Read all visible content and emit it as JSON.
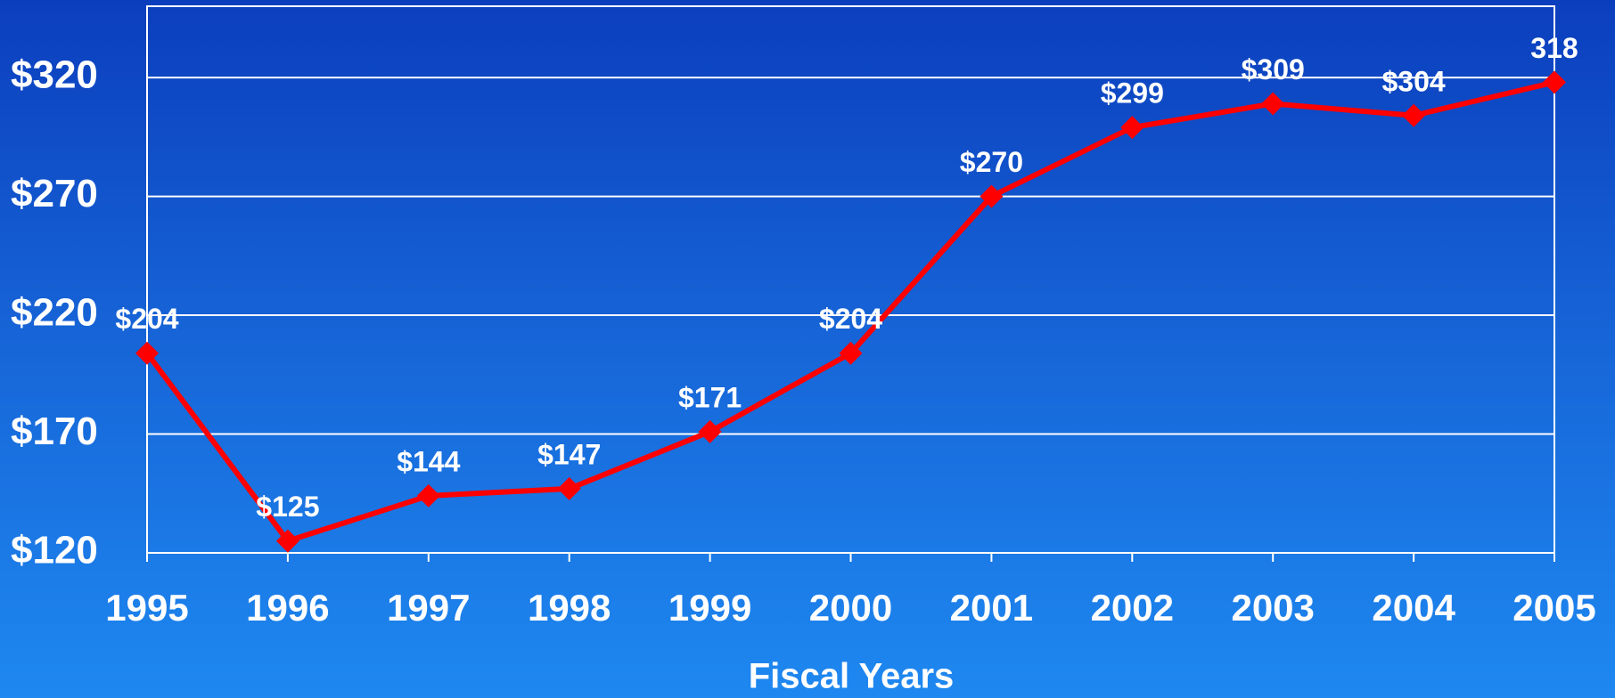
{
  "chart_data": {
    "type": "line",
    "x_label": "Fiscal Years",
    "x": [
      1995,
      1996,
      1997,
      1998,
      1999,
      2000,
      2001,
      2002,
      2003,
      2004,
      2005
    ],
    "values": [
      204,
      125,
      144,
      147,
      171,
      204,
      270,
      299,
      309,
      304,
      318
    ],
    "value_labels": [
      "$204",
      "$125",
      "$144",
      "$147",
      "$171",
      "$204",
      "$270",
      "$299",
      "$309",
      "$304",
      "318"
    ],
    "color": "#ff0000",
    "xlim": [
      1995,
      2005
    ],
    "xticks": [
      1995,
      1996,
      1997,
      1998,
      1999,
      2000,
      2001,
      2002,
      2003,
      2004,
      2005
    ],
    "ylim": [
      120,
      350
    ],
    "yticks": [
      {
        "value": 120,
        "label": "$120"
      },
      {
        "value": 170,
        "label": "$170"
      },
      {
        "value": 220,
        "label": "$220"
      },
      {
        "value": 270,
        "label": "$270"
      },
      {
        "value": 320,
        "label": "$320"
      }
    ],
    "grid": true
  }
}
